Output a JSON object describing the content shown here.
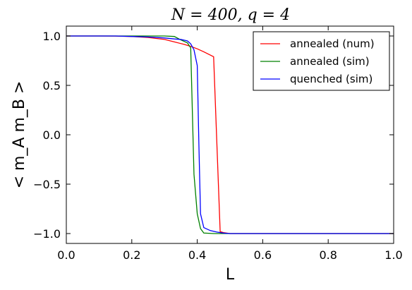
{
  "chart_data": {
    "type": "line",
    "title": "N = 400, q = 4",
    "xlabel": "L",
    "ylabel": "< m_A m_B >",
    "xlim": [
      0.0,
      1.0
    ],
    "ylim": [
      -1.1,
      1.1
    ],
    "x_ticks": [
      "0.0",
      "0.2",
      "0.4",
      "0.6",
      "0.8",
      "1.0"
    ],
    "y_ticks": [
      "1.0",
      "0.5",
      "0.0",
      "−0.5",
      "−1.0"
    ],
    "x_tick_values": [
      0.0,
      0.2,
      0.4,
      0.6,
      0.8,
      1.0
    ],
    "y_tick_values": [
      1.0,
      0.5,
      0.0,
      -0.5,
      -1.0
    ],
    "grid": false,
    "legend_position": "top-right",
    "series": [
      {
        "name": "annealed (num)",
        "color": "#ff0000",
        "x": [
          0.0,
          0.05,
          0.1,
          0.15,
          0.2,
          0.25,
          0.3,
          0.33,
          0.36,
          0.38,
          0.4,
          0.42,
          0.45,
          0.47,
          0.48,
          0.5,
          0.6,
          0.7,
          0.8,
          0.9,
          1.0
        ],
        "y": [
          1.0,
          1.0,
          1.0,
          0.999,
          0.995,
          0.985,
          0.965,
          0.94,
          0.915,
          0.895,
          0.87,
          0.84,
          0.79,
          -0.98,
          -0.99,
          -1.0,
          -1.0,
          -1.0,
          -1.0,
          -1.0,
          -1.0
        ]
      },
      {
        "name": "annealed (sim)",
        "color": "#008000",
        "x": [
          0.0,
          0.05,
          0.1,
          0.15,
          0.2,
          0.25,
          0.3,
          0.33,
          0.35,
          0.37,
          0.38,
          0.39,
          0.4,
          0.41,
          0.42,
          0.45,
          0.5,
          0.6,
          0.7,
          0.8,
          0.9,
          1.0
        ],
        "y": [
          1.0,
          1.0,
          1.0,
          1.0,
          1.0,
          1.0,
          1.0,
          0.995,
          0.96,
          0.93,
          0.88,
          -0.4,
          -0.8,
          -0.95,
          -0.995,
          -1.0,
          -1.0,
          -1.0,
          -1.0,
          -1.0,
          -1.0,
          -1.0
        ]
      },
      {
        "name": "quenched (sim)",
        "color": "#0000ff",
        "x": [
          0.0,
          0.05,
          0.1,
          0.15,
          0.2,
          0.25,
          0.3,
          0.33,
          0.35,
          0.37,
          0.38,
          0.39,
          0.4,
          0.405,
          0.41,
          0.42,
          0.44,
          0.46,
          0.48,
          0.5,
          0.6,
          0.7,
          0.8,
          0.9,
          1.0
        ],
        "y": [
          1.0,
          1.0,
          1.0,
          1.0,
          0.995,
          0.99,
          0.98,
          0.97,
          0.965,
          0.95,
          0.92,
          0.86,
          0.7,
          -0.1,
          -0.8,
          -0.94,
          -0.97,
          -0.985,
          -0.995,
          -1.0,
          -1.0,
          -1.0,
          -1.0,
          -1.0,
          -1.0
        ]
      }
    ]
  }
}
